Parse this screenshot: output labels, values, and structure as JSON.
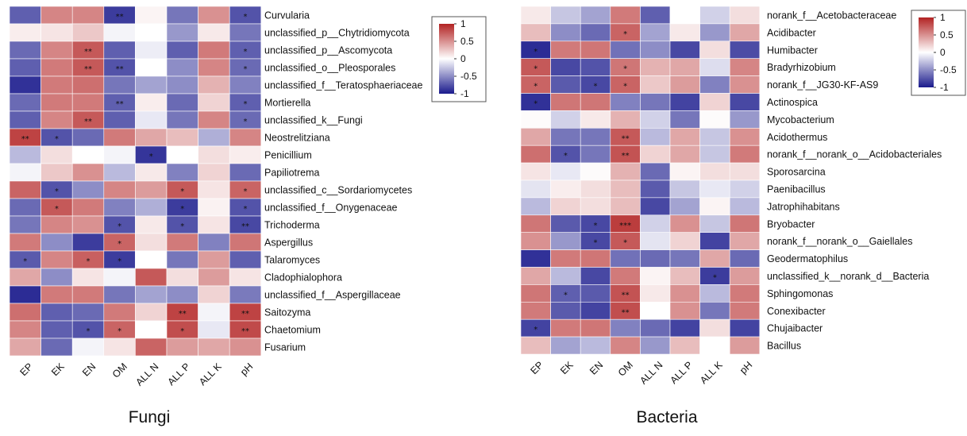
{
  "chart_data": [
    {
      "type": "heatmap",
      "caption": "Fungi",
      "columns": [
        "EP",
        "EK",
        "EN",
        "OM",
        "ALL N",
        "ALL P",
        "ALL K",
        "pH"
      ],
      "rows": [
        "Curvularia",
        "unclassified_p__Chytridiomycota",
        "unclassified_p__Ascomycota",
        "unclassified_o__Pleosporales",
        "unclassified_f__Teratosphaeriaceae",
        "Mortierella",
        "unclassified_k__Fungi",
        "Neostrelitziana",
        "Penicillium",
        "Papiliotrema",
        "unclassified_c__Sordariomycetes",
        "unclassified_f__Onygenaceae",
        "Trichoderma",
        "Aspergillus",
        "Talaromyces",
        "Cladophialophora",
        "unclassified_f__Aspergillaceae",
        "Saitozyma",
        "Chaetomium",
        "Fusarium"
      ],
      "values": [
        [
          -0.7,
          0.55,
          0.55,
          -0.85,
          0.05,
          -0.6,
          0.5,
          -0.75
        ],
        [
          0.08,
          0.12,
          0.25,
          -0.05,
          0.0,
          -0.45,
          0.1,
          -0.6
        ],
        [
          -0.65,
          0.55,
          0.75,
          -0.7,
          -0.08,
          -0.7,
          0.6,
          -0.7
        ],
        [
          -0.7,
          0.6,
          0.75,
          -0.75,
          0.0,
          -0.5,
          0.55,
          -0.65
        ],
        [
          -0.9,
          0.6,
          0.65,
          -0.6,
          -0.4,
          -0.5,
          0.35,
          -0.55
        ],
        [
          -0.65,
          0.6,
          0.6,
          -0.7,
          0.08,
          -0.65,
          0.2,
          -0.7
        ],
        [
          -0.7,
          0.55,
          0.75,
          -0.7,
          -0.1,
          -0.6,
          0.55,
          -0.65
        ],
        [
          0.85,
          -0.75,
          -0.65,
          0.6,
          0.4,
          0.3,
          -0.35,
          0.55
        ],
        [
          -0.3,
          0.15,
          0.0,
          -0.05,
          -0.88,
          0.0,
          0.15,
          0.08
        ],
        [
          -0.05,
          0.25,
          0.5,
          -0.3,
          0.1,
          -0.55,
          0.2,
          -0.65
        ],
        [
          0.7,
          -0.75,
          -0.5,
          0.55,
          0.45,
          0.75,
          0.12,
          0.7
        ],
        [
          -0.65,
          0.75,
          0.6,
          -0.55,
          -0.35,
          -0.85,
          0.06,
          -0.75
        ],
        [
          -0.6,
          0.55,
          0.5,
          -0.75,
          0.1,
          -0.75,
          0.12,
          -0.8
        ],
        [
          0.6,
          -0.5,
          -0.85,
          0.7,
          0.15,
          0.6,
          -0.55,
          0.62
        ],
        [
          -0.72,
          0.55,
          0.72,
          -0.85,
          0.0,
          -0.6,
          0.45,
          -0.7
        ],
        [
          0.4,
          -0.5,
          0.12,
          -0.05,
          0.75,
          0.15,
          0.45,
          0.12
        ],
        [
          -0.92,
          0.6,
          0.6,
          -0.6,
          -0.4,
          -0.5,
          0.2,
          -0.58
        ],
        [
          0.65,
          -0.7,
          -0.65,
          0.6,
          0.2,
          0.85,
          -0.05,
          0.85
        ],
        [
          0.55,
          -0.7,
          -0.75,
          0.7,
          0.0,
          0.8,
          -0.1,
          0.82
        ],
        [
          0.4,
          -0.65,
          -0.05,
          0.12,
          0.7,
          0.45,
          0.4,
          0.5
        ]
      ],
      "significance": [
        [
          "",
          "",
          "",
          "**",
          "",
          "",
          "",
          "*"
        ],
        [
          "",
          "",
          "",
          "",
          "",
          "",
          "",
          ""
        ],
        [
          "",
          "",
          "**",
          "",
          "",
          "",
          "",
          "*"
        ],
        [
          "",
          "",
          "**",
          "**",
          "",
          "",
          "",
          "*"
        ],
        [
          "",
          "",
          "",
          "",
          "",
          "",
          "",
          ""
        ],
        [
          "",
          "",
          "",
          "**",
          "",
          "",
          "",
          "*"
        ],
        [
          "",
          "",
          "**",
          "",
          "",
          "",
          "",
          "*"
        ],
        [
          "**",
          "*",
          "",
          "",
          "",
          "",
          "",
          ""
        ],
        [
          "",
          "",
          "",
          "",
          "*",
          "",
          "",
          ""
        ],
        [
          "",
          "",
          "",
          "",
          "",
          "",
          "",
          ""
        ],
        [
          "",
          "*",
          "",
          "",
          "",
          "*",
          "",
          "*"
        ],
        [
          "",
          "*",
          "",
          "",
          "",
          "*",
          "",
          "*"
        ],
        [
          "",
          "",
          "",
          "*",
          "",
          "*",
          "",
          "**"
        ],
        [
          "",
          "",
          "",
          "*",
          "",
          "",
          "",
          ""
        ],
        [
          "*",
          "",
          "*",
          "*",
          "",
          "",
          "",
          ""
        ],
        [
          "",
          "",
          "",
          "",
          "",
          "",
          "",
          ""
        ],
        [
          "",
          "",
          "",
          "",
          "",
          "",
          "",
          ""
        ],
        [
          "",
          "",
          "",
          "",
          "",
          "**",
          "",
          "**"
        ],
        [
          "",
          "",
          "*",
          "*",
          "",
          "*",
          "",
          "**"
        ],
        [
          "",
          "",
          "",
          "",
          "",
          "",
          "",
          ""
        ]
      ],
      "color_scale": {
        "range": [
          -1,
          1
        ],
        "low": "#1a1a8c",
        "mid": "#ffffff",
        "high": "#b22222"
      },
      "legend_ticks": [
        "1",
        "0.5",
        "0",
        "-0.5",
        "-1"
      ],
      "legend_position": "top-right"
    },
    {
      "type": "heatmap",
      "caption": "Bacteria",
      "columns": [
        "EP",
        "EK",
        "EN",
        "OM",
        "ALL N",
        "ALL P",
        "ALL K",
        "pH"
      ],
      "rows": [
        "norank_f__Acetobacteraceae",
        "Acidibacter",
        "Humibacter",
        "Bradyrhizobium",
        "norank_f__JG30-KF-AS9",
        "Actinospica",
        "Mycobacterium",
        "Acidothermus",
        "norank_f__norank_o__Acidobacteriales",
        "Sporosarcina",
        "Paenibacillus",
        "Jatrophihabitans",
        "Bryobacter",
        "norank_f__norank_o__Gaiellales",
        "Geodermatophilus",
        "unclassified_k__norank_d__Bacteria",
        "Sphingomonas",
        "Conexibacter",
        "Chujaibacter",
        "Bacillus"
      ],
      "values": [
        [
          0.1,
          -0.25,
          -0.4,
          0.6,
          -0.7,
          0.0,
          -0.2,
          0.15
        ],
        [
          0.3,
          -0.5,
          -0.65,
          0.7,
          -0.4,
          0.1,
          -0.45,
          0.4
        ],
        [
          -0.92,
          0.6,
          0.62,
          -0.62,
          -0.5,
          -0.8,
          0.15,
          -0.78
        ],
        [
          0.75,
          -0.8,
          -0.75,
          0.62,
          0.35,
          0.4,
          -0.15,
          0.55
        ],
        [
          0.7,
          -0.72,
          -0.8,
          0.7,
          0.25,
          0.45,
          -0.55,
          0.5
        ],
        [
          -0.9,
          0.62,
          0.62,
          -0.55,
          -0.6,
          -0.82,
          0.2,
          -0.8
        ],
        [
          0.02,
          -0.2,
          0.1,
          0.35,
          -0.2,
          -0.6,
          0.02,
          -0.45
        ],
        [
          0.4,
          -0.6,
          -0.6,
          0.75,
          -0.3,
          0.4,
          -0.25,
          0.5
        ],
        [
          0.65,
          -0.75,
          -0.6,
          0.78,
          0.2,
          0.4,
          -0.25,
          0.6
        ],
        [
          0.12,
          -0.1,
          0.02,
          0.35,
          -0.65,
          0.05,
          0.15,
          0.15
        ],
        [
          -0.12,
          0.08,
          0.15,
          0.3,
          -0.72,
          -0.25,
          -0.1,
          -0.2
        ],
        [
          -0.3,
          0.2,
          0.15,
          0.3,
          -0.8,
          -0.4,
          0.05,
          -0.3
        ],
        [
          0.62,
          -0.72,
          -0.8,
          0.88,
          -0.2,
          0.5,
          -0.25,
          0.62
        ],
        [
          0.5,
          -0.45,
          -0.8,
          0.75,
          -0.12,
          0.2,
          -0.82,
          0.4
        ],
        [
          -0.9,
          0.6,
          0.62,
          -0.62,
          -0.65,
          -0.6,
          0.4,
          -0.65
        ],
        [
          0.4,
          -0.3,
          -0.8,
          0.6,
          0.05,
          0.3,
          -0.85,
          0.45
        ],
        [
          0.62,
          -0.7,
          -0.72,
          0.78,
          0.1,
          0.5,
          -0.3,
          0.6
        ],
        [
          0.6,
          -0.72,
          -0.82,
          0.8,
          0.0,
          0.5,
          -0.6,
          0.6
        ],
        [
          -0.82,
          0.6,
          0.62,
          -0.55,
          -0.65,
          -0.82,
          0.15,
          -0.82
        ],
        [
          0.3,
          -0.4,
          -0.3,
          0.55,
          -0.45,
          0.3,
          0.0,
          0.45
        ]
      ],
      "significance": [
        [
          "",
          "",
          "",
          "",
          "",
          "",
          "",
          ""
        ],
        [
          "",
          "",
          "",
          "*",
          "",
          "",
          "",
          ""
        ],
        [
          "*",
          "",
          "",
          "",
          "",
          "",
          "",
          ""
        ],
        [
          "*",
          "",
          "",
          "*",
          "",
          "",
          "",
          ""
        ],
        [
          "*",
          "",
          "*",
          "*",
          "",
          "",
          "",
          ""
        ],
        [
          "*",
          "",
          "",
          "",
          "",
          "",
          "",
          ""
        ],
        [
          "",
          "",
          "",
          "",
          "",
          "",
          "",
          ""
        ],
        [
          "",
          "",
          "",
          "**",
          "",
          "",
          "",
          ""
        ],
        [
          "",
          "*",
          "",
          "**",
          "",
          "",
          "",
          ""
        ],
        [
          "",
          "",
          "",
          "",
          "",
          "",
          "",
          ""
        ],
        [
          "",
          "",
          "",
          "",
          "",
          "",
          "",
          ""
        ],
        [
          "",
          "",
          "",
          "",
          "",
          "",
          "",
          ""
        ],
        [
          "",
          "",
          "*",
          "***",
          "",
          "",
          "",
          ""
        ],
        [
          "",
          "",
          "*",
          "*",
          "",
          "",
          "",
          ""
        ],
        [
          "",
          "",
          "",
          "",
          "",
          "",
          "",
          ""
        ],
        [
          "",
          "",
          "",
          "",
          "",
          "",
          "*",
          ""
        ],
        [
          "",
          "*",
          "",
          "**",
          "",
          "",
          "",
          ""
        ],
        [
          "",
          "",
          "",
          "**",
          "",
          "",
          "",
          ""
        ],
        [
          "*",
          "",
          "",
          "",
          "",
          "",
          "",
          ""
        ],
        [
          "",
          "",
          "",
          "",
          "",
          "",
          "",
          ""
        ]
      ],
      "color_scale": {
        "range": [
          -1,
          1
        ],
        "low": "#1a1a8c",
        "mid": "#ffffff",
        "high": "#b22222"
      },
      "legend_ticks": [
        "1",
        "0.5",
        "0",
        "-0.5",
        "-1"
      ],
      "legend_position": "top-right"
    }
  ]
}
